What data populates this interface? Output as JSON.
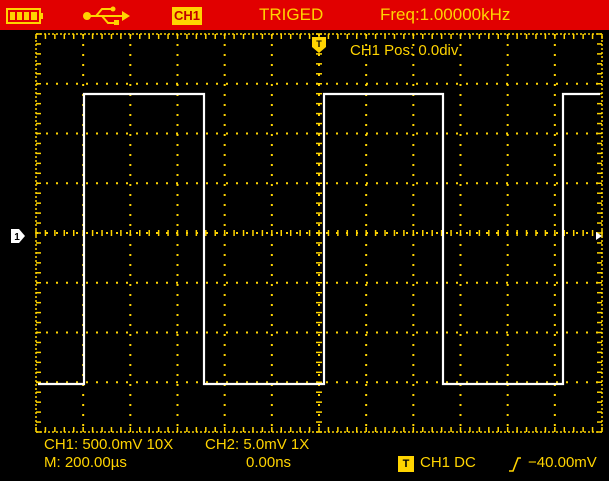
{
  "status_bar": {
    "battery_icon": "battery-full-icon",
    "usb_icon": "usb-icon",
    "channel_badge": "CH1",
    "trigger_status": "TRIGED",
    "frequency": "Freq:1.00000kHz"
  },
  "display": {
    "trigger_marker": "T",
    "channel_marker": "1",
    "position_readout": "CH1 Pos: 0.0div",
    "trace_color": "#ffffff",
    "grid_color": "#ffd400"
  },
  "readouts": {
    "ch1_scale": "CH1: 500.0mV 10X",
    "ch2_scale": "CH2: 5.0mV 1X",
    "time_base": "M: 200.00µs",
    "delay": "0.00ns",
    "trigger_icon": "T",
    "trigger_source": "CH1 DC",
    "trigger_slope_icon": "rising-edge-icon",
    "trigger_level": "−40.00mV"
  },
  "colors": {
    "status_bar_bg": "#e10000",
    "text": "#ffd400",
    "background": "#000000"
  }
}
